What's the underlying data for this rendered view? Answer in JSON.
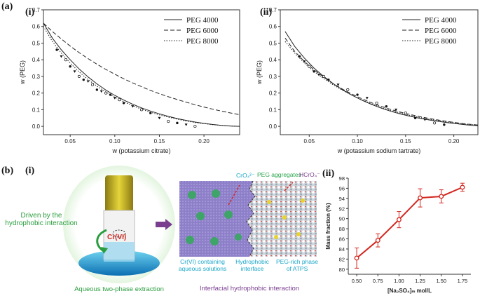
{
  "labels": {
    "a": "(a)",
    "b": "(b)",
    "a_i": "(i)",
    "a_ii": "(ii)",
    "b_i": "(i)",
    "b_ii": "(ii)"
  },
  "colors": {
    "red": "#d2271f",
    "green": "#28a44a",
    "teal": "#1aa6c9",
    "purple": "#7a3e8f",
    "axis": "#333333"
  },
  "illustration": {
    "driven_text": "Driven by the hydrophobic interaction",
    "cr_vi": "Cr(VI)",
    "aqueous_label": "Aqueous two-phase extraction",
    "cro4": "CrO₄²⁻",
    "peg_agg": "PEG aggregates",
    "hcro4": "HCrO₄⁻",
    "cr_solution": "Cr(VI) containing aqueous solutions",
    "hydro_interface": "Hydrophobic interface",
    "peg_rich": "PEG-rich phase of ATPS",
    "interfacial": "Interfacial hydrophobic interaction"
  },
  "chart_data": [
    {
      "type": "line",
      "id": "a-i",
      "title": "",
      "xlabel": "w (potassium citrate)",
      "ylabel": "w (PEG)",
      "xlim": [
        0.02,
        0.24
      ],
      "ylim": [
        -0.05,
        0.7
      ],
      "xticks": [
        "0.05",
        "0.10",
        "0.15",
        "0.20"
      ],
      "xtick_values": [
        0.05,
        0.1,
        0.15,
        0.2
      ],
      "yticks": [
        "0.0",
        "0.1",
        "0.2",
        "0.3",
        "0.4",
        "0.5",
        "0.6",
        "0.7"
      ],
      "ytick_values": [
        0.0,
        0.1,
        0.2,
        0.3,
        0.4,
        0.5,
        0.6,
        0.7
      ],
      "series": [
        {
          "name": "PEG 4000",
          "style": "solid",
          "x": [
            0.02,
            0.03,
            0.04,
            0.05,
            0.06,
            0.07,
            0.08,
            0.09,
            0.1,
            0.11,
            0.12,
            0.13,
            0.14,
            0.15,
            0.16,
            0.17,
            0.18,
            0.19,
            0.2,
            0.21,
            0.22,
            0.23,
            0.24
          ],
          "y": [
            0.62,
            0.53,
            0.46,
            0.4,
            0.345,
            0.297,
            0.255,
            0.218,
            0.186,
            0.158,
            0.133,
            0.111,
            0.092,
            0.075,
            0.06,
            0.047,
            0.036,
            0.026,
            0.018,
            0.011,
            0.006,
            0.002,
            0.0
          ]
        },
        {
          "name": "PEG 6000",
          "style": "dashed",
          "x": [
            0.02,
            0.03,
            0.04,
            0.05,
            0.06,
            0.07,
            0.08,
            0.09,
            0.1,
            0.11,
            0.12,
            0.13,
            0.14,
            0.15,
            0.16,
            0.17,
            0.18,
            0.19,
            0.2,
            0.21,
            0.22,
            0.23,
            0.24
          ],
          "y": [
            0.62,
            0.57,
            0.525,
            0.482,
            0.443,
            0.407,
            0.373,
            0.342,
            0.313,
            0.286,
            0.261,
            0.238,
            0.216,
            0.196,
            0.178,
            0.161,
            0.145,
            0.13,
            0.116,
            0.103,
            0.091,
            0.08,
            0.07
          ]
        },
        {
          "name": "PEG  8000",
          "style": "dotted",
          "x": [
            0.02,
            0.03,
            0.04,
            0.05,
            0.06,
            0.07,
            0.08,
            0.09,
            0.1,
            0.11,
            0.12,
            0.13,
            0.14,
            0.15,
            0.16,
            0.17,
            0.18,
            0.19,
            0.2,
            0.21,
            0.22,
            0.23,
            0.24
          ],
          "y": [
            0.6,
            0.51,
            0.44,
            0.38,
            0.327,
            0.281,
            0.241,
            0.206,
            0.175,
            0.148,
            0.124,
            0.103,
            0.085,
            0.069,
            0.055,
            0.043,
            0.032,
            0.023,
            0.016,
            0.01,
            0.005,
            0.002,
            0.0
          ]
        }
      ],
      "points": [
        {
          "x": 0.035,
          "y": 0.46
        },
        {
          "x": 0.04,
          "y": 0.42
        },
        {
          "x": 0.045,
          "y": 0.4
        },
        {
          "x": 0.05,
          "y": 0.36
        },
        {
          "x": 0.055,
          "y": 0.33
        },
        {
          "x": 0.06,
          "y": 0.3
        },
        {
          "x": 0.065,
          "y": 0.28
        },
        {
          "x": 0.07,
          "y": 0.27
        },
        {
          "x": 0.075,
          "y": 0.25
        },
        {
          "x": 0.08,
          "y": 0.22
        },
        {
          "x": 0.085,
          "y": 0.21
        },
        {
          "x": 0.09,
          "y": 0.2
        },
        {
          "x": 0.095,
          "y": 0.19
        },
        {
          "x": 0.1,
          "y": 0.17
        },
        {
          "x": 0.105,
          "y": 0.16
        },
        {
          "x": 0.11,
          "y": 0.14
        },
        {
          "x": 0.12,
          "y": 0.12
        },
        {
          "x": 0.13,
          "y": 0.1
        },
        {
          "x": 0.14,
          "y": 0.08
        },
        {
          "x": 0.15,
          "y": 0.05
        },
        {
          "x": 0.16,
          "y": 0.03
        },
        {
          "x": 0.17,
          "y": 0.02
        },
        {
          "x": 0.18,
          "y": 0.01
        },
        {
          "x": 0.19,
          "y": 0.0
        }
      ]
    },
    {
      "type": "line",
      "id": "a-ii",
      "title": "",
      "xlabel": "w (potassium sodium tartrate)",
      "ylabel": "w (PEG)",
      "xlim": [
        0.02,
        0.225
      ],
      "ylim": [
        -0.05,
        0.7
      ],
      "xticks": [
        "0.05",
        "0.10",
        "0.15",
        "0.20"
      ],
      "xtick_values": [
        0.05,
        0.1,
        0.15,
        0.2
      ],
      "yticks": [
        "0.0",
        "0.1",
        "0.2",
        "0.3",
        "0.4",
        "0.5",
        "0.6",
        "0.7"
      ],
      "ytick_values": [
        0.0,
        0.1,
        0.2,
        0.3,
        0.4,
        0.5,
        0.6,
        0.7
      ],
      "series": [
        {
          "name": "PEG 4000",
          "style": "solid",
          "x": [
            0.025,
            0.035,
            0.045,
            0.055,
            0.065,
            0.075,
            0.085,
            0.095,
            0.105,
            0.115,
            0.125,
            0.135,
            0.145,
            0.155,
            0.165,
            0.175,
            0.185,
            0.195,
            0.205,
            0.215,
            0.225
          ],
          "y": [
            0.57,
            0.48,
            0.41,
            0.35,
            0.3,
            0.256,
            0.218,
            0.185,
            0.156,
            0.131,
            0.109,
            0.09,
            0.074,
            0.06,
            0.048,
            0.038,
            0.029,
            0.021,
            0.014,
            0.008,
            0.004
          ]
        },
        {
          "name": "PEG 6000",
          "style": "dashed",
          "x": [
            0.025,
            0.035,
            0.045,
            0.055,
            0.065,
            0.075,
            0.085,
            0.095,
            0.105,
            0.115,
            0.125,
            0.135,
            0.145,
            0.155,
            0.165,
            0.175,
            0.185,
            0.195,
            0.205,
            0.215,
            0.225
          ],
          "y": [
            0.53,
            0.45,
            0.39,
            0.34,
            0.295,
            0.256,
            0.222,
            0.192,
            0.165,
            0.141,
            0.12,
            0.101,
            0.085,
            0.071,
            0.058,
            0.047,
            0.037,
            0.028,
            0.02,
            0.013,
            0.008
          ]
        },
        {
          "name": "PEG  8000",
          "style": "dotted",
          "x": [
            0.025,
            0.035,
            0.045,
            0.055,
            0.065,
            0.075,
            0.085,
            0.095,
            0.105,
            0.115,
            0.125,
            0.135,
            0.145,
            0.155,
            0.165,
            0.175,
            0.185,
            0.195,
            0.205,
            0.215,
            0.225
          ],
          "y": [
            0.51,
            0.44,
            0.38,
            0.33,
            0.287,
            0.249,
            0.215,
            0.185,
            0.158,
            0.134,
            0.113,
            0.095,
            0.079,
            0.065,
            0.053,
            0.042,
            0.033,
            0.025,
            0.018,
            0.012,
            0.007
          ]
        }
      ],
      "points": [
        {
          "x": 0.04,
          "y": 0.42
        },
        {
          "x": 0.045,
          "y": 0.39
        },
        {
          "x": 0.05,
          "y": 0.36
        },
        {
          "x": 0.055,
          "y": 0.33
        },
        {
          "x": 0.06,
          "y": 0.31
        },
        {
          "x": 0.065,
          "y": 0.3
        },
        {
          "x": 0.07,
          "y": 0.28
        },
        {
          "x": 0.08,
          "y": 0.25
        },
        {
          "x": 0.09,
          "y": 0.22
        },
        {
          "x": 0.1,
          "y": 0.19
        },
        {
          "x": 0.11,
          "y": 0.17
        },
        {
          "x": 0.12,
          "y": 0.14
        },
        {
          "x": 0.13,
          "y": 0.12
        },
        {
          "x": 0.14,
          "y": 0.1
        },
        {
          "x": 0.15,
          "y": 0.08
        },
        {
          "x": 0.16,
          "y": 0.05
        },
        {
          "x": 0.17,
          "y": 0.04
        },
        {
          "x": 0.18,
          "y": 0.02
        },
        {
          "x": 0.19,
          "y": 0.01
        }
      ]
    },
    {
      "type": "line",
      "id": "b-ii",
      "title": "",
      "xlabel": "[Na₂SO₄]ₘ mol/L",
      "ylabel": "Mass fraction (%)",
      "xlim": [
        0.4,
        1.85
      ],
      "ylim": [
        79,
        98
      ],
      "xticks": [
        "0.50",
        "0.75",
        "1.00",
        "1.25",
        "1.50",
        "1.75"
      ],
      "xtick_values": [
        0.5,
        0.75,
        1.0,
        1.25,
        1.5,
        1.75
      ],
      "yticks": [
        "80",
        "82",
        "84",
        "86",
        "88",
        "90",
        "92",
        "94",
        "96",
        "98"
      ],
      "ytick_values": [
        80,
        82,
        84,
        86,
        88,
        90,
        92,
        94,
        96,
        98
      ],
      "series": [
        {
          "name": "Mass fraction",
          "x": [
            0.5,
            0.75,
            1.0,
            1.25,
            1.5,
            1.75
          ],
          "values": [
            82.2,
            85.7,
            89.8,
            94.1,
            94.4,
            96.2
          ],
          "errors": [
            2.0,
            1.3,
            1.6,
            1.8,
            1.3,
            0.8
          ]
        }
      ]
    }
  ]
}
